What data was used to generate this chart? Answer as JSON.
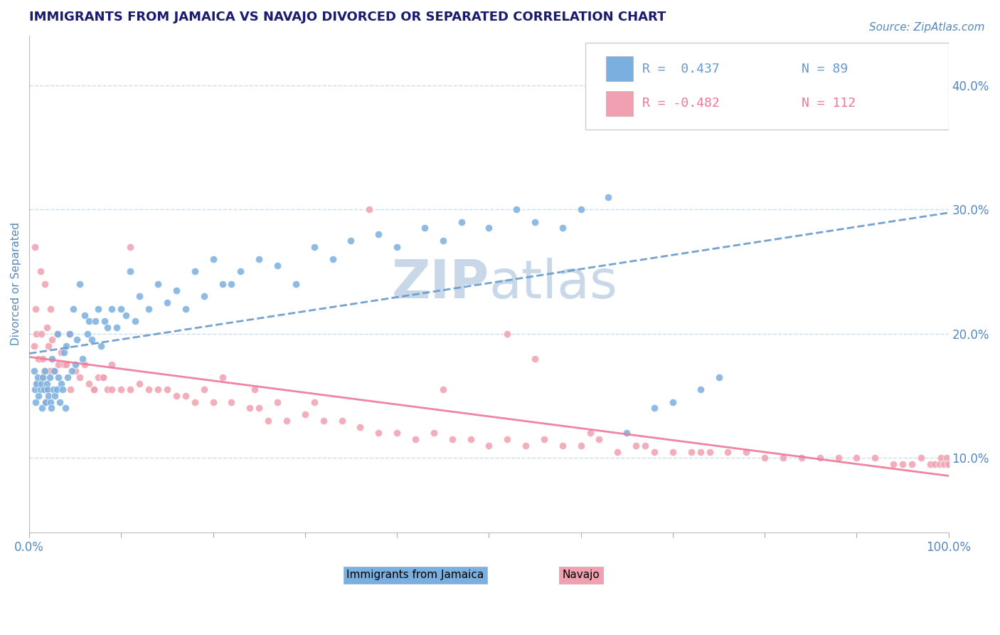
{
  "title": "IMMIGRANTS FROM JAMAICA VS NAVAJO DIVORCED OR SEPARATED CORRELATION CHART",
  "source_text": "Source: ZipAtlas.com",
  "ylabel": "Divorced or Separated",
  "x_min": 0.0,
  "x_max": 1.0,
  "y_min": 0.04,
  "y_max": 0.44,
  "y_ticks": [
    0.1,
    0.2,
    0.3,
    0.4
  ],
  "y_tick_labels": [
    "10.0%",
    "20.0%",
    "30.0%",
    "40.0%"
  ],
  "x_ticks": [
    0.0,
    0.1,
    0.2,
    0.3,
    0.4,
    0.5,
    0.6,
    0.7,
    0.8,
    0.9,
    1.0
  ],
  "blue_R": 0.437,
  "blue_N": 89,
  "pink_R": -0.482,
  "pink_N": 112,
  "blue_color": "#7ab0e0",
  "pink_color": "#f0a0b0",
  "blue_line_color": "#6699cc",
  "pink_line_color": "#ee7799",
  "title_color": "#1a1a6e",
  "tick_label_color": "#5588bb",
  "watermark_color": "#c8d8e8",
  "background_color": "#ffffff",
  "grid_color": "#ccddee",
  "legend_label_blue": "Immigrants from Jamaica",
  "legend_label_pink": "Navajo",
  "legend_R_blue": "R =  0.437",
  "legend_R_pink": "R = -0.482",
  "legend_N_blue": "N = 89",
  "legend_N_pink": "N = 112",
  "blue_x": [
    0.005,
    0.006,
    0.007,
    0.008,
    0.009,
    0.01,
    0.012,
    0.013,
    0.014,
    0.015,
    0.016,
    0.017,
    0.018,
    0.019,
    0.02,
    0.021,
    0.022,
    0.023,
    0.024,
    0.025,
    0.026,
    0.027,
    0.028,
    0.03,
    0.031,
    0.032,
    0.033,
    0.035,
    0.036,
    0.038,
    0.039,
    0.04,
    0.042,
    0.044,
    0.046,
    0.048,
    0.05,
    0.052,
    0.055,
    0.058,
    0.06,
    0.063,
    0.065,
    0.068,
    0.072,
    0.075,
    0.078,
    0.082,
    0.085,
    0.09,
    0.095,
    0.1,
    0.105,
    0.11,
    0.115,
    0.12,
    0.13,
    0.14,
    0.15,
    0.16,
    0.17,
    0.18,
    0.19,
    0.2,
    0.21,
    0.22,
    0.23,
    0.25,
    0.27,
    0.29,
    0.31,
    0.33,
    0.35,
    0.38,
    0.4,
    0.43,
    0.45,
    0.47,
    0.5,
    0.53,
    0.55,
    0.58,
    0.6,
    0.63,
    0.65,
    0.68,
    0.7,
    0.73,
    0.75
  ],
  "blue_y": [
    0.17,
    0.155,
    0.145,
    0.16,
    0.165,
    0.15,
    0.155,
    0.16,
    0.14,
    0.165,
    0.155,
    0.17,
    0.145,
    0.16,
    0.155,
    0.15,
    0.165,
    0.145,
    0.14,
    0.18,
    0.155,
    0.17,
    0.15,
    0.155,
    0.2,
    0.165,
    0.145,
    0.16,
    0.155,
    0.185,
    0.14,
    0.19,
    0.165,
    0.2,
    0.17,
    0.22,
    0.175,
    0.195,
    0.24,
    0.18,
    0.215,
    0.2,
    0.21,
    0.195,
    0.21,
    0.22,
    0.19,
    0.21,
    0.205,
    0.22,
    0.205,
    0.22,
    0.215,
    0.25,
    0.21,
    0.23,
    0.22,
    0.24,
    0.225,
    0.235,
    0.22,
    0.25,
    0.23,
    0.26,
    0.24,
    0.24,
    0.25,
    0.26,
    0.255,
    0.24,
    0.27,
    0.26,
    0.275,
    0.28,
    0.27,
    0.285,
    0.275,
    0.29,
    0.285,
    0.3,
    0.29,
    0.285,
    0.3,
    0.31,
    0.12,
    0.14,
    0.145,
    0.155,
    0.165
  ],
  "pink_x": [
    0.005,
    0.006,
    0.007,
    0.008,
    0.009,
    0.01,
    0.012,
    0.013,
    0.014,
    0.015,
    0.016,
    0.017,
    0.018,
    0.019,
    0.02,
    0.021,
    0.022,
    0.023,
    0.025,
    0.028,
    0.03,
    0.032,
    0.035,
    0.038,
    0.04,
    0.043,
    0.045,
    0.05,
    0.055,
    0.06,
    0.065,
    0.07,
    0.075,
    0.08,
    0.085,
    0.09,
    0.1,
    0.11,
    0.12,
    0.13,
    0.14,
    0.15,
    0.16,
    0.17,
    0.18,
    0.2,
    0.22,
    0.24,
    0.26,
    0.28,
    0.3,
    0.32,
    0.34,
    0.36,
    0.38,
    0.4,
    0.42,
    0.44,
    0.46,
    0.48,
    0.5,
    0.52,
    0.54,
    0.56,
    0.58,
    0.6,
    0.62,
    0.64,
    0.66,
    0.68,
    0.7,
    0.72,
    0.74,
    0.76,
    0.78,
    0.8,
    0.82,
    0.84,
    0.86,
    0.88,
    0.9,
    0.92,
    0.94,
    0.95,
    0.96,
    0.97,
    0.98,
    0.985,
    0.99,
    0.992,
    0.994,
    0.996,
    0.998,
    0.999,
    1.0,
    0.27,
    0.11,
    0.09,
    0.19,
    0.21,
    0.25,
    0.245,
    0.31,
    0.37,
    0.07,
    0.08,
    0.45,
    0.52,
    0.55,
    0.61,
    0.67,
    0.73
  ],
  "pink_y": [
    0.19,
    0.27,
    0.22,
    0.2,
    0.16,
    0.18,
    0.25,
    0.2,
    0.165,
    0.18,
    0.17,
    0.24,
    0.145,
    0.205,
    0.155,
    0.19,
    0.17,
    0.22,
    0.195,
    0.17,
    0.2,
    0.175,
    0.185,
    0.175,
    0.175,
    0.2,
    0.155,
    0.17,
    0.165,
    0.175,
    0.16,
    0.155,
    0.165,
    0.165,
    0.155,
    0.155,
    0.155,
    0.155,
    0.16,
    0.155,
    0.155,
    0.155,
    0.15,
    0.15,
    0.145,
    0.145,
    0.145,
    0.14,
    0.13,
    0.13,
    0.135,
    0.13,
    0.13,
    0.125,
    0.12,
    0.12,
    0.115,
    0.12,
    0.115,
    0.115,
    0.11,
    0.115,
    0.11,
    0.115,
    0.11,
    0.11,
    0.115,
    0.105,
    0.11,
    0.105,
    0.105,
    0.105,
    0.105,
    0.105,
    0.105,
    0.1,
    0.1,
    0.1,
    0.1,
    0.1,
    0.1,
    0.1,
    0.095,
    0.095,
    0.095,
    0.1,
    0.095,
    0.095,
    0.095,
    0.1,
    0.095,
    0.095,
    0.1,
    0.095,
    0.095,
    0.145,
    0.27,
    0.175,
    0.155,
    0.165,
    0.14,
    0.155,
    0.145,
    0.3,
    0.155,
    0.165,
    0.155,
    0.2,
    0.18,
    0.12,
    0.11,
    0.105
  ]
}
